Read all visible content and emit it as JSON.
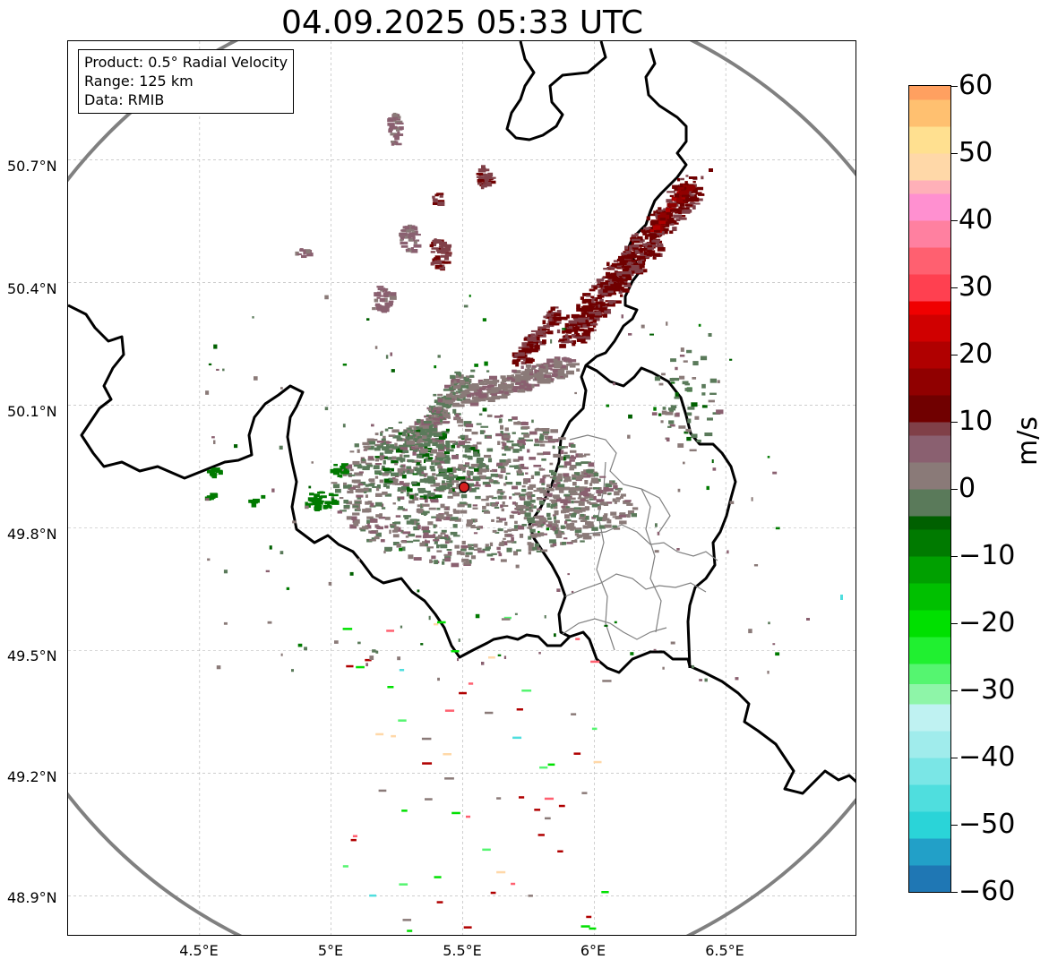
{
  "title": "04.09.2025 05:33 UTC",
  "info_box": {
    "product": "Product: 0.5° Radial Velocity",
    "range": "Range: 125 km",
    "data": "Data: RMIB"
  },
  "axes": {
    "lat_labels": [
      "50.7°N",
      "50.4°N",
      "50.1°N",
      "49.8°N",
      "49.5°N",
      "49.2°N",
      "48.9°N"
    ],
    "lon_labels": [
      "4.5°E",
      "5°E",
      "5.5°E",
      "6°E",
      "6.5°E"
    ],
    "lat_values": [
      50.7,
      50.4,
      50.1,
      49.8,
      49.5,
      49.2,
      48.9
    ],
    "lon_values": [
      4.5,
      5.0,
      5.5,
      6.0,
      6.5
    ],
    "lat_range": [
      48.8,
      50.99
    ],
    "lon_range": [
      4.0,
      7.0
    ]
  },
  "radar": {
    "site_lat": 49.914,
    "site_lon": 5.506,
    "range_km": 125,
    "site_marker_color": "#d62020",
    "range_ring_color": "#808080"
  },
  "colorbar": {
    "unit": "m/s",
    "min": -60,
    "max": 60,
    "tick_values": [
      60,
      50,
      40,
      30,
      20,
      10,
      0,
      -10,
      -20,
      -30,
      -40,
      -50,
      -60
    ],
    "tick_labels": [
      "60",
      "50",
      "40",
      "30",
      "20",
      "10",
      "0",
      "−10",
      "−20",
      "−30",
      "−40",
      "−50",
      "−60"
    ],
    "stops": [
      {
        "v": -60,
        "c": "#1f77b4"
      },
      {
        "v": -56,
        "c": "#22a0c8"
      },
      {
        "v": -52,
        "c": "#2ad4d8"
      },
      {
        "v": -48,
        "c": "#4fdede"
      },
      {
        "v": -44,
        "c": "#7ae6e6"
      },
      {
        "v": -40,
        "c": "#a0ecec"
      },
      {
        "v": -36,
        "c": "#bff2f2"
      },
      {
        "v": -32,
        "c": "#8ef5a8"
      },
      {
        "v": -29,
        "c": "#55f570"
      },
      {
        "v": -26,
        "c": "#20f030"
      },
      {
        "v": -22,
        "c": "#00e000"
      },
      {
        "v": -18,
        "c": "#00c000"
      },
      {
        "v": -14,
        "c": "#00a000"
      },
      {
        "v": -10,
        "c": "#007a00"
      },
      {
        "v": -6,
        "c": "#006000"
      },
      {
        "v": -4,
        "c": "#5a7a5a"
      },
      {
        "v": 0,
        "c": "#8a7a78"
      },
      {
        "v": 4,
        "c": "#8a6070"
      },
      {
        "v": 8,
        "c": "#804048"
      },
      {
        "v": 10,
        "c": "#700000"
      },
      {
        "v": 14,
        "c": "#900000"
      },
      {
        "v": 18,
        "c": "#b00000"
      },
      {
        "v": 22,
        "c": "#d00000"
      },
      {
        "v": 26,
        "c": "#f00000"
      },
      {
        "v": 28,
        "c": "#ff4050"
      },
      {
        "v": 32,
        "c": "#ff6070"
      },
      {
        "v": 36,
        "c": "#ff80a0"
      },
      {
        "v": 40,
        "c": "#ff90d0"
      },
      {
        "v": 44,
        "c": "#ffb0b8"
      },
      {
        "v": 46,
        "c": "#ffd8a8"
      },
      {
        "v": 50,
        "c": "#ffe090"
      },
      {
        "v": 54,
        "c": "#ffc070"
      },
      {
        "v": 58,
        "c": "#ffa060"
      }
    ]
  },
  "colors": {
    "border": "#000000",
    "region_border": "#808080",
    "grid": "#b0b0b0"
  }
}
